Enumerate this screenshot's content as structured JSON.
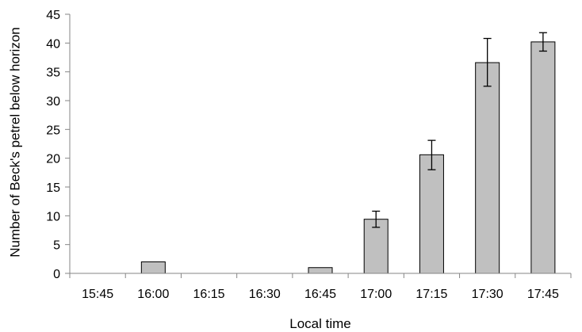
{
  "chart_data": {
    "type": "bar",
    "categories": [
      "15:45",
      "16:00",
      "16:15",
      "16:30",
      "16:45",
      "17:00",
      "17:15",
      "17:30",
      "17:45"
    ],
    "values": [
      0,
      2,
      0,
      0,
      1,
      9.4,
      20.6,
      36.6,
      40.2
    ],
    "error_bars": [
      null,
      null,
      null,
      null,
      null,
      [
        8.0,
        10.8
      ],
      [
        18.0,
        23.1
      ],
      [
        32.5,
        40.8
      ],
      [
        38.6,
        41.8
      ]
    ],
    "title": "",
    "xlabel": "Local time",
    "ylabel": "Number of Beck's petrel below horizon",
    "ylim": [
      0,
      45
    ],
    "yticks": [
      0,
      5,
      10,
      15,
      20,
      25,
      30,
      35,
      40,
      45
    ],
    "grid": false,
    "legend": "none",
    "colors": {
      "bar_fill": "#c0c0c0",
      "bar_stroke": "#000000",
      "axis": "#868686",
      "error_bar": "#000000"
    }
  }
}
